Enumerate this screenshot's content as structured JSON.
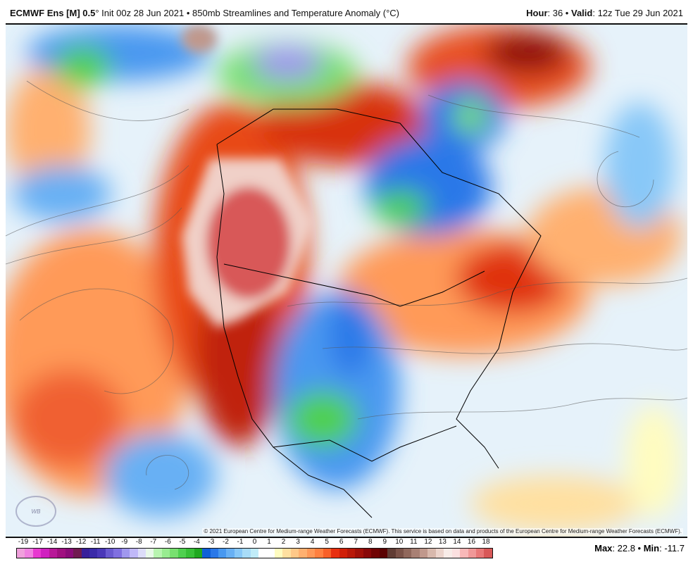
{
  "header": {
    "model": "ECMWF Ens [M] 0.5",
    "degree": "°",
    "init": " Init 00z 28 Jun 2021 • 850mb Streamlines and Temperature Anomaly (°C)",
    "hour_label": "Hour",
    "hour_value": ": 36 • ",
    "valid_label": "Valid",
    "valid_value": ": 12z Tue 29 Jun 2021"
  },
  "map": {
    "copyright": "© 2021 European Centre for Medium-range Weather Forecasts (ECMWF). This service is based on data and products of the European Centre for Medium-range Weather Forecasts (ECMWF).",
    "logo_text": "WeatherBELL"
  },
  "colorbar": {
    "labels": [
      "-19",
      "-17",
      "-14",
      "-13",
      "-12",
      "-11",
      "-10",
      "-9",
      "-8",
      "-7",
      "-6",
      "-5",
      "-4",
      "-3",
      "-2",
      "-1",
      "0",
      "1",
      "2",
      "3",
      "4",
      "5",
      "6",
      "7",
      "8",
      "9",
      "10",
      "11",
      "12",
      "13",
      "14",
      "16",
      "18"
    ],
    "colors": [
      "#f0a0dc",
      "#f080e0",
      "#e838d0",
      "#d020c0",
      "#b81898",
      "#a01080",
      "#8a0c78",
      "#701a50",
      "#38209a",
      "#3a2aa8",
      "#4a38b8",
      "#6a5ad0",
      "#8070e0",
      "#a098ee",
      "#c0b8f8",
      "#dcdcf8",
      "#e8f8e8",
      "#b8f4b0",
      "#98ec90",
      "#78e070",
      "#50d050",
      "#38c038",
      "#20a820",
      "#1060d8",
      "#2a78e8",
      "#4898f0",
      "#68b0f4",
      "#88c8f8",
      "#a8dcf8",
      "#c0ecf8",
      "#ffffff",
      "#ffffff",
      "#fffcc0",
      "#ffe0a0",
      "#ffc888",
      "#ffb070",
      "#ff9858",
      "#ff8040",
      "#f86028",
      "#e83010",
      "#d02008",
      "#b81808",
      "#a01008",
      "#880808",
      "#700404",
      "#5a0202",
      "#603c34",
      "#7a5248",
      "#90685c",
      "#a88074",
      "#c0988c",
      "#d8b8ac",
      "#ecd4cc",
      "#f8ece8",
      "#fce0e0",
      "#f8b8b8",
      "#f09898",
      "#e87878",
      "#d85858"
    ]
  },
  "stats": {
    "max_label": "Max",
    "max_value": ": 22.8 • ",
    "min_label": "Min",
    "min_value": ": -11.7"
  }
}
